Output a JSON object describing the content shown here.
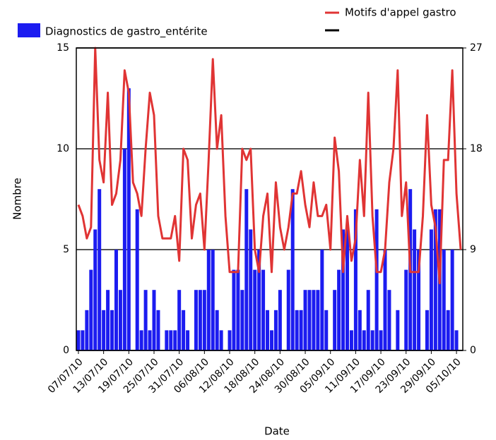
{
  "chart_data": {
    "type": "bar",
    "xlabel": "Date",
    "ylabel": "Nombre",
    "categories": [
      "07/07/10",
      null,
      null,
      null,
      null,
      null,
      "13/07/10",
      null,
      null,
      null,
      null,
      null,
      "19/07/10",
      null,
      null,
      null,
      null,
      null,
      "25/07/10",
      null,
      null,
      null,
      null,
      null,
      "31/07/10",
      null,
      null,
      null,
      null,
      null,
      "06/08/10",
      null,
      null,
      null,
      null,
      null,
      "12/08/10",
      null,
      null,
      null,
      null,
      null,
      "18/08/10",
      null,
      null,
      null,
      null,
      null,
      "24/08/10",
      null,
      null,
      null,
      null,
      null,
      "30/08/10",
      null,
      null,
      null,
      null,
      null,
      "05/09/10",
      null,
      null,
      null,
      null,
      null,
      "11/09/10",
      null,
      null,
      null,
      null,
      null,
      "17/09/10",
      null,
      null,
      null,
      null,
      null,
      "23/09/10",
      null,
      null,
      null,
      null,
      null,
      "29/09/10",
      null,
      null,
      null,
      null,
      null,
      "05/10/10",
      null
    ],
    "series": [
      {
        "name": "Diagnostics de gastro_entérite",
        "color": "#1c1cf0",
        "type": "bar",
        "values": [
          1,
          1,
          2,
          4,
          6,
          8,
          2,
          3,
          2,
          5,
          3,
          10,
          13,
          0,
          7,
          1,
          3,
          1,
          3,
          2,
          0,
          1,
          1,
          1,
          3,
          2,
          1,
          0,
          3,
          3,
          3,
          5,
          5,
          2,
          1,
          0,
          1,
          4,
          4,
          3,
          8,
          6,
          4,
          5,
          4,
          2,
          1,
          2,
          3,
          0,
          4,
          8,
          2,
          2,
          3,
          3,
          3,
          3,
          5,
          2,
          0,
          3,
          4,
          6,
          6,
          1,
          7,
          2,
          1,
          3,
          1,
          7,
          1,
          5,
          3,
          0,
          2,
          0,
          4,
          8,
          6,
          5,
          0,
          2,
          6,
          7,
          7,
          5,
          2,
          5,
          1,
          0
        ]
      },
      {
        "name": "Motifs d'appel gastro",
        "color": "#e03434",
        "type": "line",
        "axis": "y2",
        "values": [
          13,
          12,
          10,
          11,
          27,
          17,
          15,
          23,
          13,
          14,
          17,
          25,
          23,
          15,
          14,
          12,
          18,
          23,
          21,
          12,
          10,
          10,
          10,
          12,
          8,
          18,
          17,
          10,
          13,
          14,
          9,
          17,
          26,
          18,
          21,
          12,
          7,
          7,
          7,
          18,
          17,
          18,
          9,
          7,
          12,
          14,
          7,
          15,
          11,
          9,
          11,
          14,
          14,
          16,
          13,
          11,
          15,
          12,
          12,
          13,
          9,
          19,
          16,
          7,
          12,
          8,
          10,
          17,
          12,
          23,
          12,
          7,
          7,
          9,
          15,
          18,
          25,
          12,
          15,
          7,
          7,
          7,
          12,
          21,
          13,
          11,
          6,
          17,
          17,
          25,
          14,
          9
        ]
      }
    ],
    "ylim": [
      0,
      15
    ],
    "yticks": [
      0,
      5,
      10,
      15
    ],
    "y2lim": [
      0,
      27
    ],
    "y2ticks": [
      0,
      9,
      18,
      27
    ],
    "grid": true
  }
}
